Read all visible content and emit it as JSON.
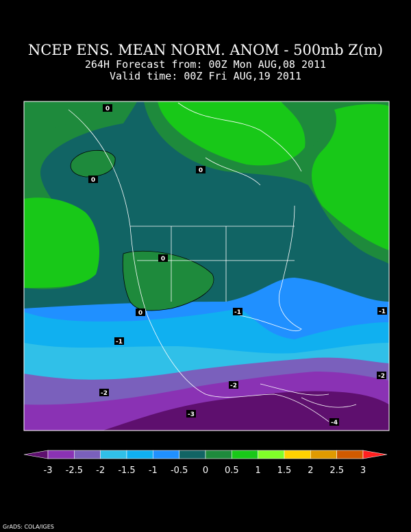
{
  "header": {
    "title": "NCEP ENS. MEAN NORM. ANOM - 500mb Z(m)",
    "forecast": "264H Forecast from: 00Z Mon AUG,08 2011",
    "valid": "Valid time: 00Z Fri AUG,19 2011"
  },
  "map": {
    "contour_labels": [
      "0",
      "0",
      "0",
      "0",
      "0",
      "-1",
      "-1",
      "-1",
      "-2",
      "-2",
      "-2",
      "-3",
      "-4"
    ]
  },
  "colorbar": {
    "colors": [
      "#5e0f6e",
      "#8a32b4",
      "#7a60bc",
      "#30c0e8",
      "#10b0f0",
      "#2090ff",
      "#116464",
      "#1e8a3c",
      "#18c818",
      "#80ff28",
      "#ffd200",
      "#e09a00",
      "#d05a00",
      "#ff2020"
    ],
    "labels": [
      "-3",
      "-2.5",
      "-2",
      "-1.5",
      "-1",
      "-0.5",
      "0",
      "0.5",
      "1",
      "1.5",
      "2",
      "2.5",
      "3"
    ]
  },
  "footer": "GrADS: COLA/IGES"
}
